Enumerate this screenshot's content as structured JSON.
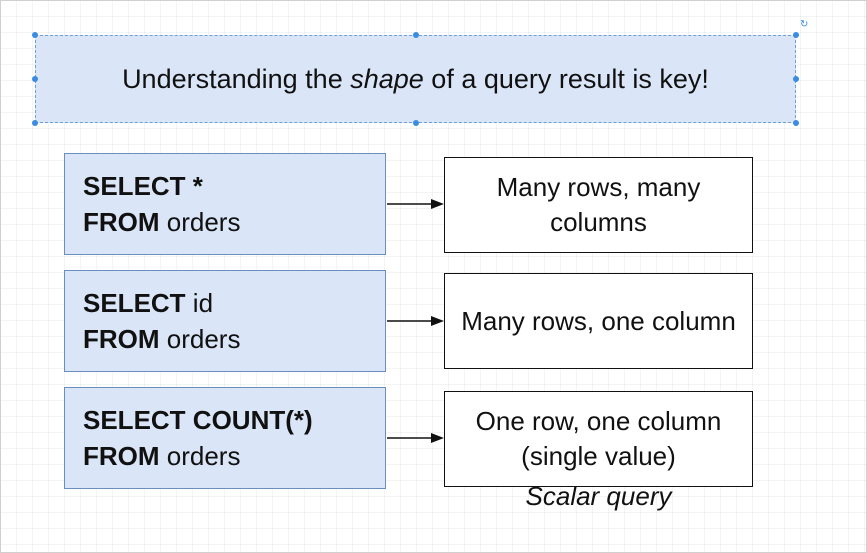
{
  "title": {
    "before": "Understanding the ",
    "emphasis": "shape",
    "after": " of a query result is key!"
  },
  "rows": [
    {
      "query": {
        "kw1": "SELECT",
        "rest1": " *",
        "kw2": "FROM",
        "rest2": " orders"
      },
      "result": "Many rows, many columns"
    },
    {
      "query": {
        "kw1": "SELECT",
        "rest1": " id",
        "kw2": "FROM",
        "rest2": " orders"
      },
      "result": "Many rows, one column"
    },
    {
      "query": {
        "kw1": "SELECT COUNT(*)",
        "rest1": "",
        "kw2": "FROM",
        "rest2": " orders"
      },
      "result": "One row, one column (single value)"
    }
  ],
  "caption": "Scalar query"
}
